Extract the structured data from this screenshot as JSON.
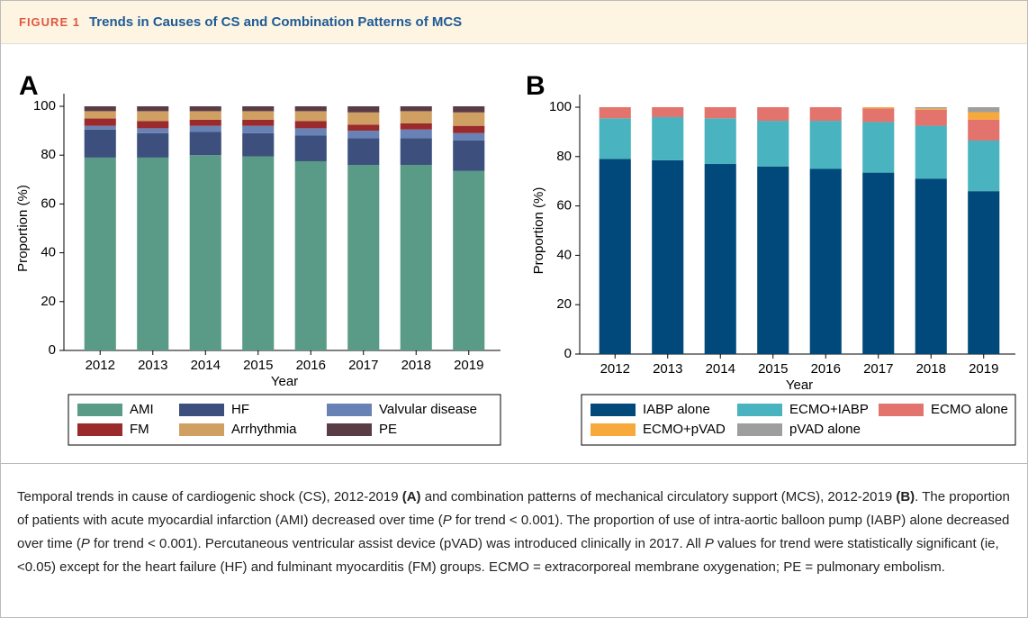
{
  "header": {
    "figure_label": "FIGURE 1",
    "title": "Trends in Causes of CS and Combination Patterns of MCS"
  },
  "chart_data": [
    {
      "type": "stacked_bar",
      "label": "A",
      "ylabel": "Proportion (%)",
      "xlabel": "Year",
      "categories": [
        "2012",
        "2013",
        "2014",
        "2015",
        "2016",
        "2017",
        "2018",
        "2019"
      ],
      "ylim": [
        0,
        100
      ],
      "yticks": [
        0,
        20,
        40,
        60,
        80,
        100
      ],
      "grid": false,
      "legend": "bottom",
      "series": [
        {
          "name": "AMI",
          "color": "#5a9b87",
          "values": [
            79,
            79,
            80,
            79.5,
            77.5,
            76,
            76,
            73.5
          ]
        },
        {
          "name": "HF",
          "color": "#3d4f7c",
          "values": [
            11.5,
            10,
            9.5,
            9.5,
            10.5,
            11,
            11,
            12.5
          ]
        },
        {
          "name": "Valvular disease",
          "color": "#6882b5",
          "values": [
            1.5,
            2,
            2.5,
            3,
            3,
            3,
            3.5,
            3
          ]
        },
        {
          "name": "FM",
          "color": "#9b2a2d",
          "values": [
            3,
            3,
            2.5,
            2.5,
            3,
            2.5,
            2.5,
            3
          ]
        },
        {
          "name": "Arrhythmia",
          "color": "#d0a063",
          "values": [
            3,
            4,
            3.5,
            3.5,
            4,
            5,
            5,
            5.5
          ]
        },
        {
          "name": "PE",
          "color": "#5a3c47",
          "values": [
            2,
            2,
            2,
            2,
            2,
            2.5,
            2,
            2.5
          ]
        }
      ]
    },
    {
      "type": "stacked_bar",
      "label": "B",
      "ylabel": "Proportion (%)",
      "xlabel": "Year",
      "categories": [
        "2012",
        "2013",
        "2014",
        "2015",
        "2016",
        "2017",
        "2018",
        "2019"
      ],
      "ylim": [
        0,
        100
      ],
      "yticks": [
        0,
        20,
        40,
        60,
        80,
        100
      ],
      "grid": false,
      "legend": "bottom",
      "series": [
        {
          "name": "IABP alone",
          "color": "#00497a",
          "values": [
            79,
            78.5,
            77,
            76,
            75,
            73.5,
            71,
            66
          ]
        },
        {
          "name": "ECMO+IABP",
          "color": "#4ab3c0",
          "values": [
            16.5,
            17.5,
            18.5,
            18.5,
            19.5,
            20.5,
            21.5,
            20.5
          ]
        },
        {
          "name": "ECMO alone",
          "color": "#e3736d",
          "values": [
            4.5,
            4,
            4.5,
            5.5,
            5.5,
            5.5,
            6.5,
            8.5
          ]
        },
        {
          "name": "ECMO+pVAD",
          "color": "#f7a93b",
          "values": [
            0,
            0,
            0,
            0,
            0,
            0.5,
            0.5,
            3
          ]
        },
        {
          "name": "pVAD alone",
          "color": "#9e9e9e",
          "values": [
            0,
            0,
            0,
            0,
            0,
            0,
            0.5,
            2
          ]
        }
      ]
    }
  ],
  "caption": [
    {
      "text": "Temporal trends in cause of cardiogenic shock (CS), 2012-2019 ",
      "style": "normal"
    },
    {
      "text": "(A)",
      "style": "bold"
    },
    {
      "text": " and combination patterns of mechanical circulatory support (MCS), 2012-2019 ",
      "style": "normal"
    },
    {
      "text": "(B)",
      "style": "bold"
    },
    {
      "text": ". The proportion of patients with acute myocardial infarction (AMI) decreased over time (",
      "style": "normal"
    },
    {
      "text": "P",
      "style": "italic"
    },
    {
      "text": " for trend < 0.001). The proportion of use of intra-aortic balloon pump (IABP) alone decreased over time (",
      "style": "normal"
    },
    {
      "text": "P",
      "style": "italic"
    },
    {
      "text": " for trend < 0.001). Percutaneous ventricular assist device (pVAD) was introduced clinically in 2017. All ",
      "style": "normal"
    },
    {
      "text": "P",
      "style": "italic"
    },
    {
      "text": " values for trend were statistically significant (ie, <0.05) except for the heart failure (HF) and fulminant myocarditis (FM) groups. ECMO = extracorporeal membrane oxygenation; PE = pulmonary embolism.",
      "style": "normal"
    }
  ]
}
